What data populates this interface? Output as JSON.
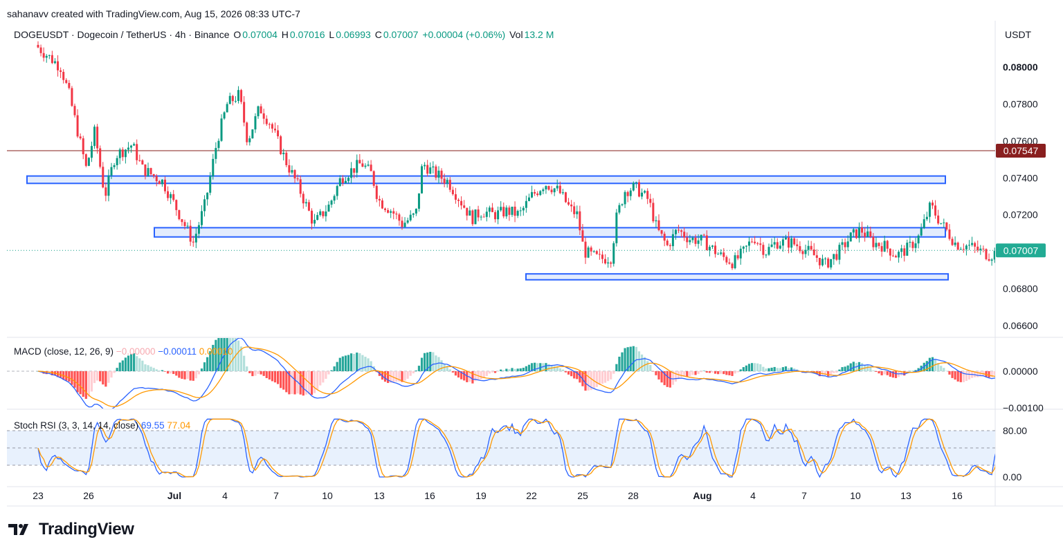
{
  "attribution": "sahanavv created with TradingView.com, Aug 15, 2026 08:33 UTC-7",
  "symbol": {
    "title": "DOGEUSDT · Dogecoin / TetherUS · 4h · Binance",
    "o_label": "O",
    "o": "0.07004",
    "h_label": "H",
    "h": "0.07016",
    "l_label": "L",
    "l": "0.06993",
    "c_label": "C",
    "c": "0.07007",
    "change": "+0.00004 (+0.06%)",
    "vol_label": "Vol",
    "vol": "13.2 M"
  },
  "axis_currency": "USDT",
  "brand": "TradingView",
  "colors": {
    "up": "#089981",
    "down": "#f23645",
    "zone_fill": "#e3ecfd",
    "zone_border": "#2962ff",
    "resistance": "#9c4b47",
    "macd": "#2962ff",
    "signal": "#ff9800",
    "k": "#2962ff",
    "d": "#ff9800"
  },
  "chart_data": [
    {
      "type": "candlestick",
      "name": "price",
      "x": [
        "23",
        "26",
        "Jul",
        "4",
        "7",
        "10",
        "13",
        "16",
        "19",
        "22",
        "25",
        "28",
        "Aug",
        "4",
        "7",
        "10",
        "13",
        "16"
      ],
      "y_ticks": [
        "0.08000",
        "0.07800",
        "0.07600",
        "0.07400",
        "0.07200",
        "0.06800",
        "0.06600"
      ],
      "ylim": [
        0.0653,
        0.0817
      ],
      "path": [
        [
          0.0,
          0.0812
        ],
        [
          1.5,
          0.08
        ],
        [
          2.0,
          0.0785
        ],
        [
          3.0,
          0.0745
        ],
        [
          3.5,
          0.0765
        ],
        [
          4.1,
          0.073
        ],
        [
          4.7,
          0.0752
        ],
        [
          5.7,
          0.0758
        ],
        [
          6.3,
          0.0745
        ],
        [
          7.5,
          0.0738
        ],
        [
          8.5,
          0.072
        ],
        [
          9.3,
          0.0705
        ],
        [
          10.0,
          0.0726
        ],
        [
          10.7,
          0.076
        ],
        [
          11.3,
          0.078
        ],
        [
          12.0,
          0.0785
        ],
        [
          12.5,
          0.076
        ],
        [
          13.2,
          0.0778
        ],
        [
          13.8,
          0.077
        ],
        [
          14.8,
          0.0748
        ],
        [
          15.5,
          0.0735
        ],
        [
          16.4,
          0.0715
        ],
        [
          17.3,
          0.0725
        ],
        [
          18.0,
          0.074
        ],
        [
          19.2,
          0.0748
        ],
        [
          19.8,
          0.0742
        ],
        [
          20.2,
          0.0728
        ],
        [
          21.0,
          0.0722
        ],
        [
          21.6,
          0.0715
        ],
        [
          22.4,
          0.072
        ],
        [
          22.8,
          0.0748
        ],
        [
          23.4,
          0.0743
        ],
        [
          24.3,
          0.0738
        ],
        [
          25.0,
          0.0728
        ],
        [
          25.7,
          0.0718
        ],
        [
          26.3,
          0.0722
        ],
        [
          27.0,
          0.072
        ],
        [
          27.8,
          0.0722
        ],
        [
          28.5,
          0.072
        ],
        [
          29.2,
          0.073
        ],
        [
          30.0,
          0.0737
        ],
        [
          30.8,
          0.0733
        ],
        [
          31.5,
          0.0723
        ],
        [
          31.9,
          0.072
        ],
        [
          32.3,
          0.07
        ],
        [
          33.2,
          0.0696
        ],
        [
          33.9,
          0.0697
        ],
        [
          34.2,
          0.0718
        ],
        [
          34.7,
          0.0733
        ],
        [
          35.3,
          0.0735
        ],
        [
          36.1,
          0.0728
        ],
        [
          36.6,
          0.0712
        ],
        [
          37.2,
          0.0703
        ],
        [
          37.8,
          0.0712
        ],
        [
          38.5,
          0.0707
        ],
        [
          39.3,
          0.0706
        ],
        [
          40.3,
          0.0698
        ],
        [
          41.1,
          0.0694
        ],
        [
          41.7,
          0.07
        ],
        [
          42.3,
          0.0708
        ],
        [
          43.0,
          0.07
        ],
        [
          43.6,
          0.0705
        ],
        [
          44.5,
          0.0705
        ],
        [
          45.2,
          0.0702
        ],
        [
          46.0,
          0.0697
        ],
        [
          46.5,
          0.0693
        ],
        [
          47.3,
          0.07
        ],
        [
          48.0,
          0.0708
        ],
        [
          48.6,
          0.0712
        ],
        [
          49.3,
          0.0705
        ],
        [
          50.0,
          0.0703
        ],
        [
          50.7,
          0.0698
        ],
        [
          51.4,
          0.0702
        ],
        [
          52.0,
          0.0708
        ],
        [
          52.7,
          0.0725
        ],
        [
          53.2,
          0.0717
        ],
        [
          53.6,
          0.0712
        ],
        [
          54.2,
          0.0704
        ],
        [
          55.0,
          0.0703
        ],
        [
          55.7,
          0.07
        ],
        [
          56.2,
          0.0698
        ],
        [
          56.8,
          0.0701
        ]
      ]
    },
    {
      "type": "line",
      "name": "MACD (close, 12, 26, 9)",
      "legend_values": [
        "−0.00000",
        "−0.00011",
        "0.00010"
      ],
      "y_ticks": [
        "0.00000",
        "−0.00100"
      ]
    },
    {
      "type": "line",
      "name": "Stoch RSI (3, 3, 14, 14, close)",
      "legend_values": [
        "69.55",
        "77.04"
      ],
      "y_ticks": [
        "80.00",
        "0.00"
      ]
    }
  ],
  "price_levels": {
    "resistance": "0.07547",
    "last": "0.07007"
  }
}
